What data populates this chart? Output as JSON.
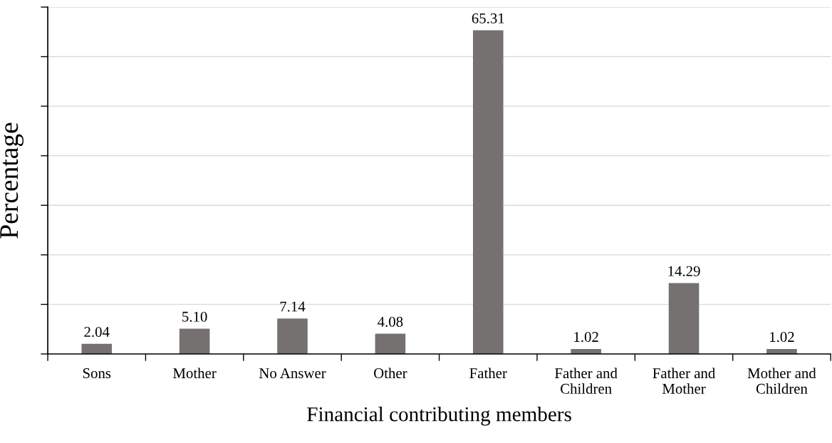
{
  "chart_data": {
    "type": "bar",
    "xlabel": "Financial contributing members",
    "ylabel": "Percentage",
    "categories": [
      "Sons",
      "Mother",
      "No Answer",
      "Other",
      "Father",
      "Father and\nChildren",
      "Father and\nMother",
      "Mother and\nChildren"
    ],
    "values": [
      2.04,
      5.1,
      7.14,
      4.08,
      65.31,
      1.02,
      14.29,
      1.02
    ],
    "value_labels": [
      "2.04",
      "5.10",
      "7.14",
      "4.08",
      "65.31",
      "1.02",
      "14.29",
      "1.02"
    ],
    "color": "#767171",
    "ylim": [
      0,
      70
    ],
    "yticks": [
      {
        "value": 0,
        "label": null
      },
      {
        "value": 10,
        "label": null
      },
      {
        "value": 20,
        "label": null
      },
      {
        "value": 30,
        "label": null
      },
      {
        "value": 40,
        "label": null
      },
      {
        "value": 50,
        "label": null
      },
      {
        "value": 60,
        "label": null
      },
      {
        "value": 70,
        "label": null
      }
    ],
    "grid": "y",
    "legend": false
  }
}
